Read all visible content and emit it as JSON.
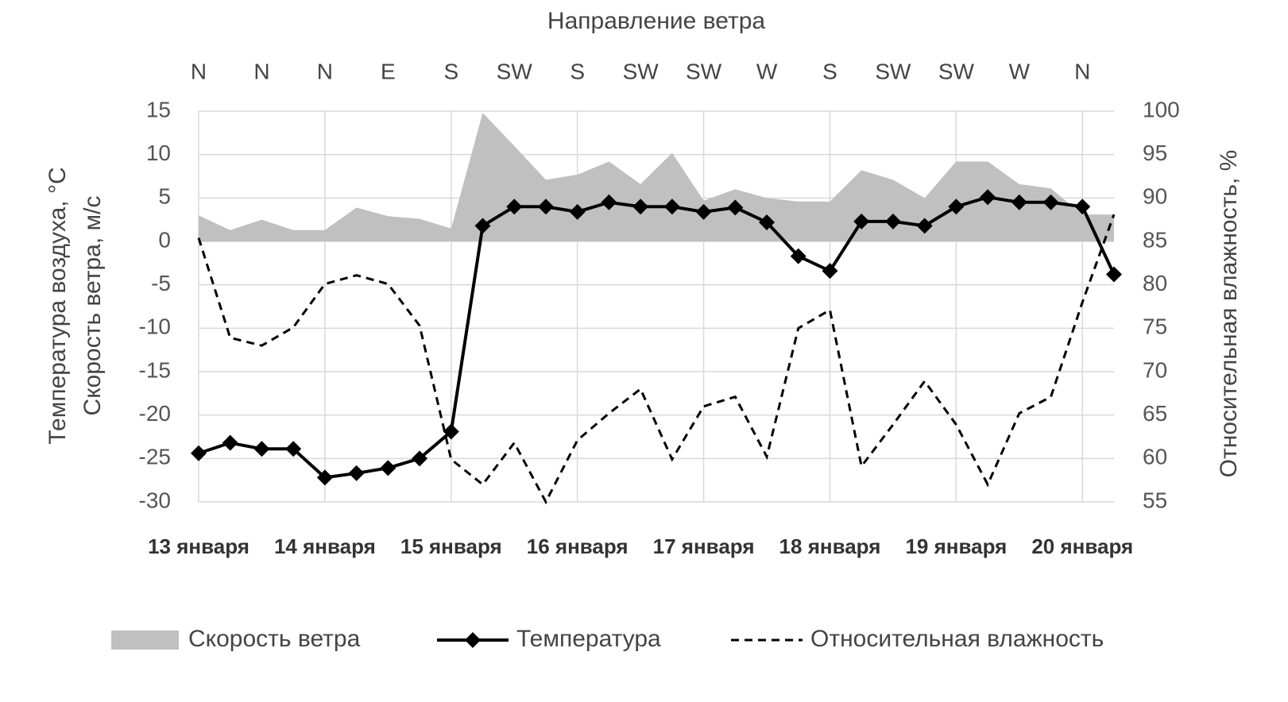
{
  "chart_data": {
    "type": "line",
    "top_axis_title": "Направление ветра",
    "y_label": [
      "Температура воздуха, °C",
      "Скорость ветра, м/с"
    ],
    "y2_label": "Относительная влажность, %",
    "categories": [
      "13 января",
      null,
      null,
      null,
      "14 января",
      null,
      null,
      null,
      "15 января",
      null,
      null,
      null,
      "16 января",
      null,
      null,
      null,
      "17 января",
      null,
      null,
      null,
      "18 января",
      null,
      null,
      null,
      "19 января",
      null,
      null,
      null,
      "20 января",
      null
    ],
    "wind_direction": [
      "N",
      null,
      "N",
      null,
      "N",
      null,
      "E",
      null,
      "S",
      null,
      "SW",
      null,
      "S",
      null,
      "SW",
      null,
      "SW",
      null,
      "W",
      null,
      "S",
      null,
      "SW",
      null,
      "SW",
      null,
      "W",
      null,
      "N",
      null
    ],
    "series": [
      {
        "name": "Скорость ветра",
        "kind": "area",
        "color": "#c0c0c0",
        "axis": "y",
        "values": [
          3.0,
          1.3,
          2.5,
          1.3,
          1.3,
          3.9,
          2.9,
          2.6,
          1.5,
          14.8,
          11.0,
          7.1,
          7.7,
          9.2,
          6.6,
          10.2,
          4.7,
          6.0,
          5.0,
          4.6,
          4.6,
          8.2,
          7.1,
          5.0,
          9.2,
          9.2,
          6.6,
          6.1,
          3.1,
          3.1
        ]
      },
      {
        "name": "Температура",
        "kind": "line",
        "marker": "diamond",
        "color": "#000000",
        "axis": "y",
        "values": [
          -24.4,
          -23.2,
          -23.9,
          -23.9,
          -27.2,
          -26.7,
          -26.1,
          -25.0,
          -21.9,
          1.8,
          4.0,
          4.0,
          3.4,
          4.5,
          4.0,
          4.0,
          3.4,
          3.9,
          2.2,
          -1.7,
          -3.4,
          2.3,
          2.3,
          1.8,
          4.0,
          5.1,
          4.5,
          4.5,
          4.0,
          -3.8
        ]
      },
      {
        "name": "Относительная влажность",
        "kind": "line",
        "dashed": true,
        "color": "#000000",
        "axis": "y2",
        "values": [
          85.4,
          73.9,
          73.0,
          75.1,
          80.1,
          81.1,
          80.1,
          75.3,
          59.9,
          57.0,
          61.8,
          55.0,
          62.1,
          65.2,
          68.0,
          59.9,
          66.0,
          67.1,
          60.2,
          75.0,
          77.1,
          59.1,
          63.9,
          68.9,
          63.9,
          57.0,
          65.2,
          67.1,
          78.0,
          88.1
        ]
      }
    ],
    "ylim": [
      -30,
      15
    ],
    "yticks": [
      15,
      10,
      5,
      0,
      -5,
      -10,
      -15,
      -20,
      -25,
      -30
    ],
    "y2lim": [
      55,
      100
    ],
    "y2ticks": [
      100,
      95,
      90,
      85,
      80,
      75,
      70,
      65,
      60,
      55
    ],
    "grid": true,
    "legend": "bottom"
  }
}
